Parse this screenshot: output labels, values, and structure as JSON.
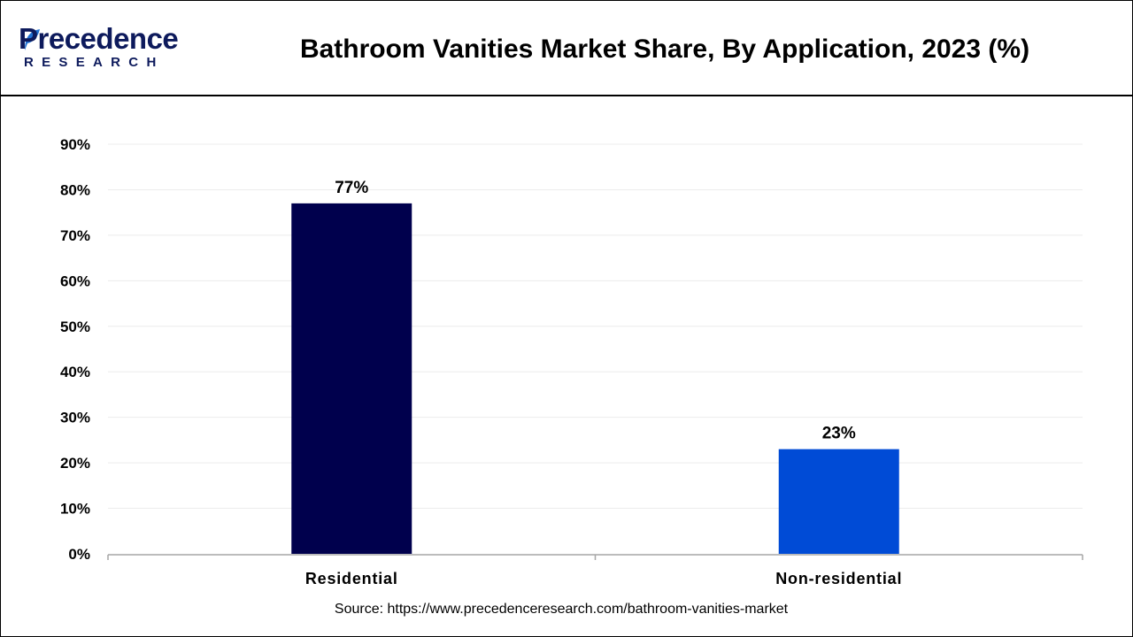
{
  "brand": {
    "name_top": "Precedence",
    "name_bottom": "RESEARCH",
    "color_dark": "#0d1a5c",
    "color_accent": "#1f6fd0"
  },
  "chart_data": {
    "type": "bar",
    "title": "Bathroom Vanities Market Share, By Application, 2023 (%)",
    "categories": [
      "Residential",
      "Non-residential"
    ],
    "values": [
      77,
      23
    ],
    "value_labels": [
      "77%",
      "23%"
    ],
    "bar_colors": [
      "#00004d",
      "#004bd6"
    ],
    "ylim": [
      0,
      90
    ],
    "yticks": [
      0,
      10,
      20,
      30,
      40,
      50,
      60,
      70,
      80,
      90
    ],
    "ytick_labels": [
      "0%",
      "10%",
      "20%",
      "30%",
      "40%",
      "50%",
      "60%",
      "70%",
      "80%",
      "90%"
    ],
    "xlabel": "",
    "ylabel": "",
    "grid": true,
    "legend": "none"
  },
  "source": "Source: https://www.precedenceresearch.com/bathroom-vanities-market"
}
